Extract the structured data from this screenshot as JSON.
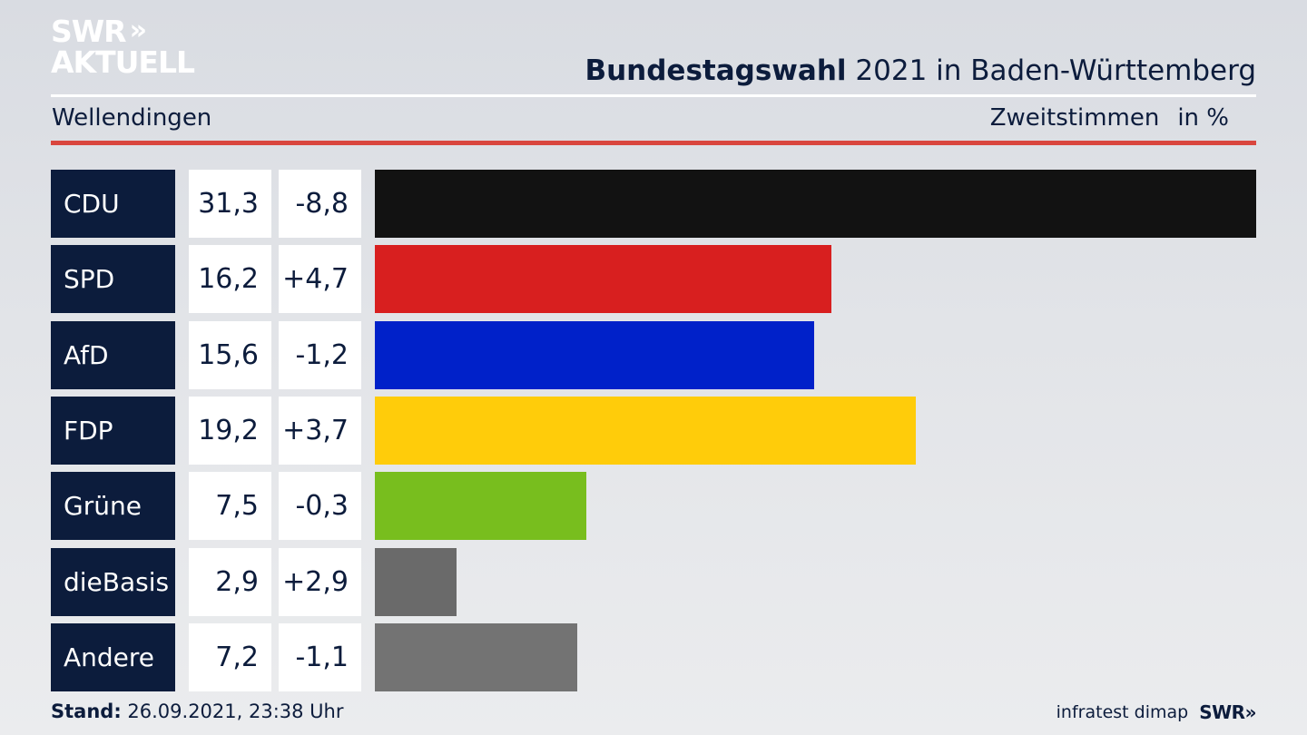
{
  "logo": {
    "line1": "SWR",
    "chevrons": "»",
    "line2": "AKTUELL"
  },
  "header": {
    "title_bold": "Bundestagswahl",
    "title_rest": " 2021 in Baden-Württemberg"
  },
  "subheader": {
    "constituency": "Wellendingen",
    "vote_type": "Zweitstimmen",
    "unit": "in %"
  },
  "colors": {
    "navy": "#0c1c3c",
    "accent_red": "#d9463e",
    "CDU": "#121212",
    "SPD": "#d81f1f",
    "AfD": "#0021c9",
    "FDP": "#ffcc0a",
    "Grüne": "#78be1e",
    "dieBasis": "#6a6a6a",
    "Andere": "#737373"
  },
  "chart_data": {
    "type": "bar",
    "orientation": "horizontal",
    "title": "Bundestagswahl 2021 in Baden-Württemberg",
    "subtitle": "Wellendingen — Zweitstimmen in %",
    "categories": [
      "CDU",
      "SPD",
      "AfD",
      "FDP",
      "Grüne",
      "dieBasis",
      "Andere"
    ],
    "values": [
      31.3,
      16.2,
      15.6,
      19.2,
      7.5,
      2.9,
      7.2
    ],
    "value_labels": [
      "31,3",
      "16,2",
      "15,6",
      "19,2",
      "7,5",
      "2,9",
      "7,2"
    ],
    "changes": [
      -8.8,
      4.7,
      -1.2,
      3.7,
      -0.3,
      2.9,
      -1.1
    ],
    "change_labels": [
      "-8,8",
      "+4,7",
      "-1,2",
      "+3,7",
      "-0,3",
      "+2,9",
      "-1,1"
    ],
    "xlim": [
      0,
      31.3
    ],
    "xlabel": "",
    "ylabel": ""
  },
  "footer": {
    "stand_label": "Stand:",
    "stand_value": " 26.09.2021, 23:38 Uhr",
    "source": "infratest dimap",
    "brand": "SWR»"
  }
}
